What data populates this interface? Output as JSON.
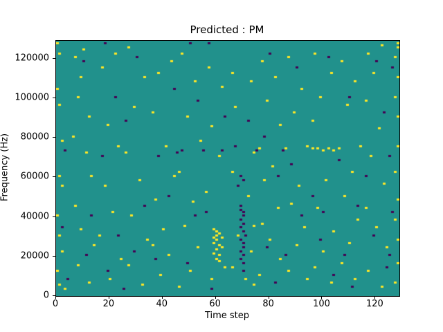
{
  "chart_data": {
    "type": "heatmap",
    "title": "Predicted : PM",
    "xlabel": "Time step",
    "ylabel": "Frequency (Hz)",
    "x_range": [
      0,
      129
    ],
    "y_range": [
      0,
      129000
    ],
    "x_ticks": [
      0,
      20,
      40,
      60,
      80,
      100,
      120
    ],
    "y_ticks": [
      0,
      20000,
      40000,
      60000,
      80000,
      100000,
      120000
    ],
    "grid": false,
    "legend": "none",
    "colormap": "viridis",
    "colors": {
      "background": "#21918c",
      "high": "#fde725",
      "low": "#440154"
    },
    "cell_size": {
      "x": 1,
      "y": 1000
    },
    "high_cells": [
      [
        0,
        127
      ],
      [
        1,
        122
      ],
      [
        0,
        104
      ],
      [
        1,
        96
      ],
      [
        2,
        78
      ],
      [
        1,
        60
      ],
      [
        2,
        55
      ],
      [
        0,
        40
      ],
      [
        1,
        30
      ],
      [
        2,
        22
      ],
      [
        0,
        12
      ],
      [
        1,
        5
      ],
      [
        3,
        3
      ],
      [
        7,
        120
      ],
      [
        10,
        124
      ],
      [
        9,
        110
      ],
      [
        8,
        100
      ],
      [
        12,
        90
      ],
      [
        6,
        80
      ],
      [
        11,
        72
      ],
      [
        13,
        60
      ],
      [
        7,
        45
      ],
      [
        9,
        33
      ],
      [
        14,
        25
      ],
      [
        8,
        15
      ],
      [
        12,
        6
      ],
      [
        17,
        115
      ],
      [
        22,
        122
      ],
      [
        19,
        86
      ],
      [
        23,
        75
      ],
      [
        18,
        55
      ],
      [
        21,
        42
      ],
      [
        16,
        30
      ],
      [
        24,
        18
      ],
      [
        20,
        8
      ],
      [
        27,
        125
      ],
      [
        33,
        110
      ],
      [
        29,
        95
      ],
      [
        26,
        72
      ],
      [
        31,
        58
      ],
      [
        28,
        40
      ],
      [
        34,
        28
      ],
      [
        27,
        15
      ],
      [
        32,
        5
      ],
      [
        38,
        112
      ],
      [
        43,
        118
      ],
      [
        36,
        92
      ],
      [
        41,
        75
      ],
      [
        44,
        60
      ],
      [
        37,
        48
      ],
      [
        40,
        33
      ],
      [
        42,
        20
      ],
      [
        39,
        10
      ],
      [
        36,
        25
      ],
      [
        47,
        122
      ],
      [
        52,
        108
      ],
      [
        49,
        90
      ],
      [
        54,
        78
      ],
      [
        46,
        62
      ],
      [
        51,
        47
      ],
      [
        48,
        35
      ],
      [
        53,
        24
      ],
      [
        50,
        12
      ],
      [
        46,
        4
      ],
      [
        57,
        115
      ],
      [
        62,
        105
      ],
      [
        58,
        85
      ],
      [
        61,
        70
      ],
      [
        56,
        52
      ],
      [
        59,
        33
      ],
      [
        60,
        32
      ],
      [
        60,
        30
      ],
      [
        61,
        31
      ],
      [
        60,
        28
      ],
      [
        59,
        26
      ],
      [
        61,
        25
      ],
      [
        60,
        23
      ],
      [
        59,
        21
      ],
      [
        61,
        20
      ],
      [
        60,
        18
      ],
      [
        62,
        29
      ],
      [
        62,
        24
      ],
      [
        59,
        29
      ],
      [
        61,
        17
      ],
      [
        58,
        8
      ],
      [
        63,
        14
      ],
      [
        66,
        112
      ],
      [
        73,
        108
      ],
      [
        67,
        95
      ],
      [
        74,
        72
      ],
      [
        66,
        62
      ],
      [
        72,
        50
      ],
      [
        74,
        35
      ],
      [
        68,
        30
      ],
      [
        73,
        22
      ],
      [
        66,
        14
      ],
      [
        71,
        8
      ],
      [
        74,
        5
      ],
      [
        77,
        118
      ],
      [
        82,
        110
      ],
      [
        79,
        98
      ],
      [
        84,
        86
      ],
      [
        76,
        74
      ],
      [
        81,
        65
      ],
      [
        78,
        58
      ],
      [
        83,
        44
      ],
      [
        77,
        36
      ],
      [
        80,
        28
      ],
      [
        84,
        18
      ],
      [
        76,
        10
      ],
      [
        87,
        120
      ],
      [
        92,
        104
      ],
      [
        89,
        92
      ],
      [
        94,
        75
      ],
      [
        86,
        74
      ],
      [
        91,
        55
      ],
      [
        88,
        46
      ],
      [
        93,
        34
      ],
      [
        90,
        25
      ],
      [
        87,
        12
      ],
      [
        94,
        8
      ],
      [
        96,
        74
      ],
      [
        98,
        74
      ],
      [
        100,
        73
      ],
      [
        102,
        74
      ],
      [
        104,
        73
      ],
      [
        97,
        122
      ],
      [
        103,
        112
      ],
      [
        99,
        100
      ],
      [
        96,
        88
      ],
      [
        101,
        58
      ],
      [
        98,
        44
      ],
      [
        104,
        32
      ],
      [
        100,
        22
      ],
      [
        97,
        14
      ],
      [
        103,
        6
      ],
      [
        107,
        118
      ],
      [
        112,
        108
      ],
      [
        109,
        96
      ],
      [
        114,
        75
      ],
      [
        106,
        74
      ],
      [
        111,
        62
      ],
      [
        108,
        50
      ],
      [
        113,
        38
      ],
      [
        110,
        26
      ],
      [
        107,
        16
      ],
      [
        112,
        8
      ],
      [
        117,
        122
      ],
      [
        122,
        126
      ],
      [
        119,
        112
      ],
      [
        116,
        98
      ],
      [
        121,
        84
      ],
      [
        118,
        70
      ],
      [
        123,
        56
      ],
      [
        116,
        44
      ],
      [
        120,
        34
      ],
      [
        124,
        24
      ],
      [
        117,
        12
      ],
      [
        122,
        4
      ],
      [
        128,
        127
      ],
      [
        128,
        125
      ],
      [
        127,
        120
      ],
      [
        128,
        110
      ],
      [
        127,
        100
      ],
      [
        128,
        90
      ],
      [
        128,
        75
      ],
      [
        127,
        62
      ],
      [
        128,
        48
      ],
      [
        127,
        38
      ],
      [
        128,
        28
      ],
      [
        128,
        16
      ],
      [
        127,
        6
      ]
    ],
    "low_cells": [
      [
        3,
        73
      ],
      [
        2,
        34
      ],
      [
        4,
        8
      ],
      [
        10,
        118
      ],
      [
        13,
        40
      ],
      [
        11,
        20
      ],
      [
        18,
        127
      ],
      [
        22,
        100
      ],
      [
        17,
        70
      ],
      [
        23,
        30
      ],
      [
        19,
        12
      ],
      [
        30,
        120
      ],
      [
        26,
        88
      ],
      [
        33,
        45
      ],
      [
        29,
        22
      ],
      [
        25,
        3
      ],
      [
        44,
        104
      ],
      [
        38,
        70
      ],
      [
        42,
        50
      ],
      [
        37,
        18
      ],
      [
        45,
        72
      ],
      [
        50,
        127
      ],
      [
        53,
        98
      ],
      [
        47,
        73
      ],
      [
        52,
        40
      ],
      [
        49,
        16
      ],
      [
        55,
        73
      ],
      [
        57,
        127
      ],
      [
        63,
        90
      ],
      [
        56,
        42
      ],
      [
        58,
        3
      ],
      [
        62,
        73
      ],
      [
        69,
        45
      ],
      [
        69,
        43
      ],
      [
        70,
        42
      ],
      [
        70,
        40
      ],
      [
        69,
        38
      ],
      [
        70,
        36
      ],
      [
        69,
        34
      ],
      [
        70,
        32
      ],
      [
        71,
        30
      ],
      [
        69,
        28
      ],
      [
        70,
        26
      ],
      [
        70,
        24
      ],
      [
        69,
        22
      ],
      [
        70,
        20
      ],
      [
        69,
        18
      ],
      [
        70,
        16
      ],
      [
        70,
        12
      ],
      [
        68,
        55
      ],
      [
        70,
        58
      ],
      [
        69,
        60
      ],
      [
        67,
        75
      ],
      [
        72,
        88
      ],
      [
        80,
        122
      ],
      [
        78,
        80
      ],
      [
        83,
        60
      ],
      [
        79,
        24
      ],
      [
        82,
        6
      ],
      [
        75,
        73
      ],
      [
        90,
        115
      ],
      [
        88,
        66
      ],
      [
        92,
        40
      ],
      [
        86,
        20
      ],
      [
        85,
        73
      ],
      [
        102,
        120
      ],
      [
        96,
        50
      ],
      [
        99,
        28
      ],
      [
        104,
        10
      ],
      [
        100,
        42
      ],
      [
        110,
        100
      ],
      [
        106,
        68
      ],
      [
        113,
        45
      ],
      [
        108,
        20
      ],
      [
        111,
        4
      ],
      [
        120,
        118
      ],
      [
        123,
        92
      ],
      [
        116,
        60
      ],
      [
        119,
        30
      ],
      [
        124,
        14
      ],
      [
        126,
        115
      ],
      [
        125,
        70
      ],
      [
        126,
        42
      ],
      [
        125,
        20
      ]
    ]
  }
}
